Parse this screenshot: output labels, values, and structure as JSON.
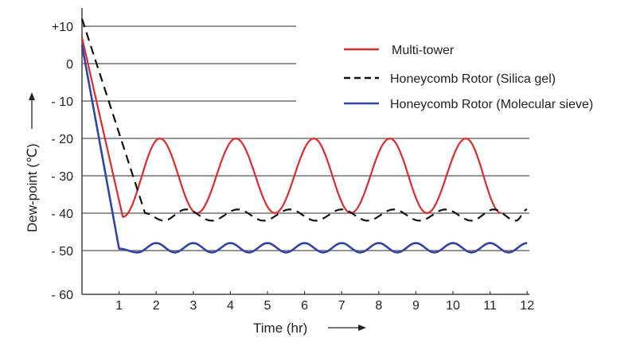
{
  "chart_data": {
    "type": "line",
    "title": "",
    "xlabel": "Time (hr)",
    "ylabel": "Dew-point (℃)",
    "xlim": [
      0,
      12
    ],
    "ylim": [
      -60,
      10
    ],
    "x_ticks": [
      "1",
      "2",
      "3",
      "4",
      "5",
      "6",
      "7",
      "8",
      "9",
      "10",
      "11",
      "12"
    ],
    "y_ticks": [
      {
        "value": 10,
        "label": "+10"
      },
      {
        "value": 0,
        "label": "0"
      },
      {
        "value": -10,
        "label": "- 10"
      },
      {
        "value": -20,
        "label": "- 20"
      },
      {
        "value": -30,
        "label": "- 30"
      },
      {
        "value": -40,
        "label": "- 40"
      },
      {
        "value": -50,
        "label": "- 50"
      },
      {
        "value": -60,
        "label": "- 60"
      }
    ],
    "grid": true,
    "legend_position": "top-right",
    "series": [
      {
        "name": "Multi-tower",
        "color": "#e02a2a",
        "style": "solid",
        "points": [
          [
            0,
            7
          ],
          [
            1.1,
            -41
          ],
          [
            2.1,
            -20
          ],
          [
            3.1,
            -40
          ],
          [
            4.15,
            -20
          ],
          [
            5.2,
            -40
          ],
          [
            6.25,
            -20
          ],
          [
            7.25,
            -40
          ],
          [
            8.3,
            -20
          ],
          [
            9.3,
            -40
          ],
          [
            10.35,
            -20
          ],
          [
            11.3,
            -40
          ]
        ]
      },
      {
        "name": "Honeycomb Rotor (Silica gel)",
        "color": "#111111",
        "style": "dashed",
        "points": [
          [
            0,
            12
          ],
          [
            1.7,
            -40
          ],
          [
            2.2,
            -42
          ],
          [
            2.8,
            -39
          ],
          [
            3.5,
            -42
          ],
          [
            4.2,
            -39
          ],
          [
            4.9,
            -42
          ],
          [
            5.6,
            -39
          ],
          [
            6.3,
            -42
          ],
          [
            7.0,
            -39
          ],
          [
            7.7,
            -42
          ],
          [
            8.4,
            -39
          ],
          [
            9.1,
            -42
          ],
          [
            9.8,
            -39
          ],
          [
            10.5,
            -42
          ],
          [
            11.1,
            -39
          ],
          [
            11.7,
            -42
          ],
          [
            12,
            -39
          ]
        ]
      },
      {
        "name": "Honeycomb Rotor (Molecular sieve)",
        "color": "#2f46a8",
        "style": "solid",
        "points": [
          [
            0,
            5
          ],
          [
            1,
            -49.5
          ],
          [
            1.5,
            -50.5
          ],
          [
            2,
            -48
          ],
          [
            2.5,
            -50.5
          ],
          [
            3,
            -48
          ],
          [
            3.5,
            -50.5
          ],
          [
            4,
            -48
          ],
          [
            4.5,
            -50.5
          ],
          [
            5,
            -48
          ],
          [
            5.5,
            -50.5
          ],
          [
            6,
            -48
          ],
          [
            6.5,
            -50.5
          ],
          [
            7,
            -48
          ],
          [
            7.5,
            -50.5
          ],
          [
            8,
            -48
          ],
          [
            8.5,
            -50.5
          ],
          [
            9,
            -48
          ],
          [
            9.5,
            -50.5
          ],
          [
            10,
            -48
          ],
          [
            10.5,
            -50.5
          ],
          [
            11,
            -48
          ],
          [
            11.5,
            -50.5
          ],
          [
            12,
            -48
          ]
        ]
      }
    ]
  }
}
